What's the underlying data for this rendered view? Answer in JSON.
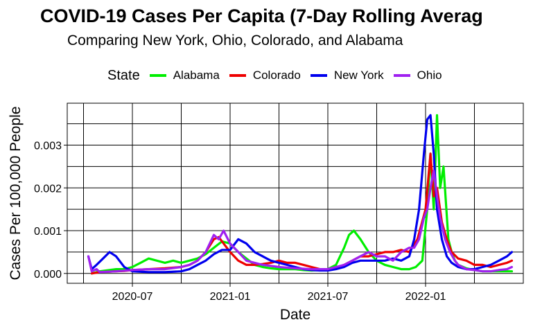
{
  "chart_data": {
    "type": "line",
    "title": "COVID-19 Cases Per Capita (7-Day Rolling Averag",
    "subtitle": "Comparing New York, Ohio, Colorado, and Alabama",
    "xlabel": "Date",
    "ylabel": "Cases Per 100,000 People",
    "legend_title": "State",
    "legend_position": "top",
    "grid": true,
    "x_ticks": [
      {
        "label": "2020-07",
        "month": 6
      },
      {
        "label": "2021-01",
        "month": 12
      },
      {
        "label": "2021-07",
        "month": 18
      },
      {
        "label": "2022-01",
        "month": 24
      }
    ],
    "y_ticks": [
      0,
      0.001,
      0.002,
      0.003
    ],
    "y_tick_labels": [
      "0.000",
      "0.001",
      "0.002",
      "0.003"
    ],
    "xlim_months": [
      2.0,
      30.0
    ],
    "ylim": [
      -0.00023,
      0.00398
    ],
    "series": [
      {
        "name": "Alabama",
        "color": "#00ee00",
        "x": [
          3.5,
          4,
          5,
          5.5,
          6,
          6.5,
          7,
          7.5,
          8,
          8.5,
          9,
          9.5,
          10,
          10.5,
          11,
          11.5,
          12,
          12.5,
          13,
          13.5,
          14,
          14.5,
          15,
          15.5,
          16,
          16.5,
          17,
          17.5,
          18,
          18.5,
          19,
          19.3,
          19.6,
          20,
          20.5,
          21,
          21.5,
          22,
          22.5,
          23,
          23.4,
          23.8,
          24.1,
          24.3,
          24.5,
          24.7,
          24.9,
          25.1,
          25.4,
          25.6,
          25.8,
          26,
          26.5,
          27,
          27.5,
          28,
          28.5,
          29,
          29.3
        ],
        "values": [
          0,
          5e-05,
          0.0001,
          0.0001,
          0.00015,
          0.00025,
          0.00035,
          0.0003,
          0.00025,
          0.0003,
          0.00025,
          0.0003,
          0.00035,
          0.00045,
          0.0006,
          0.00075,
          0.0007,
          0.0005,
          0.00035,
          0.0002,
          0.00015,
          0.00012,
          0.0001,
          0.0001,
          0.0001,
          8e-05,
          7e-05,
          8e-05,
          0.0001,
          0.0002,
          0.0006,
          0.0009,
          0.001,
          0.0008,
          0.0005,
          0.0003,
          0.0002,
          0.00015,
          0.0001,
          0.0001,
          0.00015,
          0.0003,
          0.0015,
          0.0028,
          0.0015,
          0.0037,
          0.002,
          0.0025,
          0.0008,
          0.0005,
          0.0003,
          0.0002,
          0.00012,
          8e-05,
          5e-05,
          5e-05,
          5e-05,
          5e-05,
          5e-05
        ]
      },
      {
        "name": "Colorado",
        "color": "#ee0000",
        "x": [
          3.5,
          4,
          5,
          5.5,
          6,
          7,
          8,
          9,
          9.5,
          10,
          10.5,
          11,
          11.3,
          11.6,
          12,
          12.5,
          13,
          13.5,
          14,
          14.5,
          15,
          15.5,
          16,
          16.5,
          17,
          17.5,
          18,
          18.5,
          19,
          19.5,
          20,
          20.5,
          21,
          21.5,
          22,
          22.5,
          23,
          23.5,
          24,
          24.3,
          24.5,
          24.7,
          25,
          25.3,
          25.6,
          26,
          26.5,
          27,
          27.5,
          28,
          28.5,
          29,
          29.3
        ],
        "values": [
          0,
          3e-05,
          5e-05,
          6e-05,
          8e-05,
          0.0001,
          0.00012,
          0.00015,
          0.0002,
          0.0003,
          0.0005,
          0.0008,
          0.00085,
          0.0007,
          0.0005,
          0.0003,
          0.0002,
          0.0002,
          0.00022,
          0.00025,
          0.0003,
          0.00025,
          0.00025,
          0.0002,
          0.00015,
          0.0001,
          0.0001,
          0.00012,
          0.0002,
          0.0003,
          0.0004,
          0.0004,
          0.00045,
          0.0005,
          0.0005,
          0.00055,
          0.0005,
          0.0008,
          0.0015,
          0.0028,
          0.0018,
          0.002,
          0.0012,
          0.0008,
          0.0005,
          0.00035,
          0.0003,
          0.0002,
          0.0002,
          0.00015,
          0.0002,
          0.00025,
          0.0003
        ]
      },
      {
        "name": "New York",
        "color": "#0000ee",
        "x": [
          3.3,
          3.5,
          3.8,
          4.2,
          4.6,
          5,
          5.5,
          6,
          7,
          8,
          9,
          9.5,
          10,
          10.5,
          11,
          11.5,
          12,
          12.5,
          13,
          13.5,
          14,
          14.5,
          15,
          15.5,
          16,
          16.5,
          17,
          17.5,
          18,
          18.5,
          19,
          19.5,
          20,
          20.5,
          21,
          21.5,
          22,
          22.5,
          23,
          23.3,
          23.6,
          23.9,
          24.1,
          24.3,
          24.5,
          24.7,
          25,
          25.3,
          25.6,
          26,
          26.5,
          27,
          27.5,
          28,
          28.5,
          29,
          29.3
        ],
        "values": [
          0.0004,
          0.0001,
          0.0002,
          0.00035,
          0.0005,
          0.0004,
          0.00015,
          5e-05,
          3e-05,
          3e-05,
          5e-05,
          0.0001,
          0.0002,
          0.0003,
          0.00045,
          0.00055,
          0.00055,
          0.0008,
          0.0007,
          0.0005,
          0.0004,
          0.0003,
          0.00025,
          0.0002,
          0.00015,
          0.0001,
          8e-05,
          7e-05,
          7e-05,
          0.0001,
          0.00015,
          0.00025,
          0.0003,
          0.0003,
          0.0003,
          0.0003,
          0.00035,
          0.0003,
          0.0004,
          0.0008,
          0.0015,
          0.0028,
          0.0036,
          0.0037,
          0.0028,
          0.0015,
          0.0008,
          0.0004,
          0.00025,
          0.00015,
          0.0001,
          0.0001,
          0.00015,
          0.0002,
          0.0003,
          0.0004,
          0.0005
        ]
      },
      {
        "name": "Ohio",
        "color": "#a020f0",
        "x": [
          3.3,
          3.5,
          3.8,
          4,
          5,
          6,
          7,
          8,
          9,
          9.5,
          10,
          10.5,
          11,
          11.3,
          11.6,
          12,
          12.5,
          13,
          13.5,
          14,
          15,
          16,
          17,
          18,
          18.5,
          19,
          19.5,
          20,
          20.5,
          21,
          21.5,
          22,
          22.5,
          23,
          23.3,
          23.6,
          23.9,
          24.1,
          24.3,
          24.5,
          24.7,
          24.9,
          25.2,
          25.5,
          25.8,
          26,
          26.5,
          27,
          27.5,
          28,
          28.5,
          29,
          29.3
        ],
        "values": [
          0.0004,
          5e-05,
          0.0001,
          3e-05,
          5e-05,
          8e-05,
          0.0001,
          0.0001,
          0.00015,
          0.0002,
          0.0003,
          0.0005,
          0.0009,
          0.0008,
          0.001,
          0.0007,
          0.0005,
          0.0003,
          0.00025,
          0.0002,
          0.00015,
          0.00012,
          0.0001,
          0.0001,
          0.00015,
          0.0002,
          0.0003,
          0.0004,
          0.0005,
          0.0004,
          0.0004,
          0.0003,
          0.0005,
          0.0006,
          0.0006,
          0.0008,
          0.0013,
          0.0015,
          0.002,
          0.0024,
          0.0018,
          0.0013,
          0.0008,
          0.0005,
          0.0003,
          0.0002,
          0.0001,
          8e-05,
          5e-05,
          5e-05,
          8e-05,
          0.0001,
          0.00015
        ]
      }
    ]
  }
}
